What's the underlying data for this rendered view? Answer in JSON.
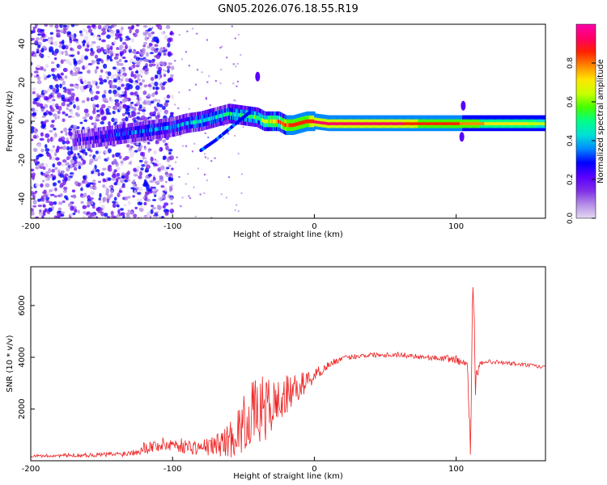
{
  "figure_title": "GN05.2026.076.18.55.R19",
  "colors": {
    "snr_line": "#ee2222",
    "cmap": [
      "#e6d8f2",
      "#b38de6",
      "#7f2ee6",
      "#5a00ff",
      "#0000ff",
      "#0088ff",
      "#00e0d8",
      "#00ff88",
      "#44ff00",
      "#c8ff00",
      "#ffe600",
      "#ff8800",
      "#ff2200",
      "#ff0066",
      "#ff00aa"
    ]
  },
  "chart_data": [
    {
      "type": "heatmap",
      "title": "",
      "xlabel": "Height of straight line (km)",
      "ylabel": "Frequency (Hz)",
      "xlim": [
        -200,
        163
      ],
      "ylim": [
        -50,
        50
      ],
      "xticks": [
        -200,
        -100,
        0,
        100
      ],
      "xtick_labels": [
        "-200",
        "-100",
        "0",
        "100"
      ],
      "yticks": [
        -40,
        -20,
        0,
        20,
        40
      ],
      "ytick_labels": [
        "-40",
        "-20",
        "0",
        "20",
        "40"
      ],
      "ridge": {
        "x": [
          -170,
          -160,
          -150,
          -140,
          -130,
          -120,
          -110,
          -100,
          -90,
          -80,
          -70,
          -60,
          -50,
          -40,
          -35,
          -30,
          -25,
          -20,
          -15,
          -10,
          -5,
          0,
          10,
          20,
          40,
          60,
          80,
          90,
          100,
          105,
          110,
          120,
          140,
          163
        ],
        "freq": [
          -10,
          -9,
          -8,
          -7,
          -6,
          -5,
          -4,
          -3,
          -1,
          0,
          2,
          4,
          3,
          2,
          0,
          0,
          0,
          -2,
          -2,
          -1,
          0,
          0,
          -1,
          -1,
          -1,
          -1,
          -1,
          -1,
          -1,
          -1,
          -1,
          -1,
          -1,
          -1
        ],
        "amplitude": [
          0.15,
          0.2,
          0.25,
          0.3,
          0.3,
          0.35,
          0.35,
          0.35,
          0.4,
          0.4,
          0.45,
          0.45,
          0.5,
          0.55,
          0.6,
          0.7,
          0.75,
          0.8,
          0.85,
          0.85,
          0.85,
          0.9,
          0.9,
          0.9,
          0.9,
          0.9,
          0.85,
          0.85,
          0.85,
          0.8,
          0.8,
          0.75,
          0.7,
          0.65
        ]
      },
      "branch": {
        "x": [
          -80,
          -70,
          -60,
          -50,
          -45
        ],
        "freq": [
          -15,
          -10,
          -4,
          2,
          5
        ]
      },
      "spikes": [
        {
          "x": -40,
          "freq": 23
        },
        {
          "x": 105,
          "freq": 8
        },
        {
          "x": 104,
          "freq": -8
        }
      ],
      "colorbar": {
        "label": "Normalized spectral amplitude",
        "range": [
          0,
          1
        ],
        "ticks": [
          0.0,
          0.2,
          0.4,
          0.6,
          0.8
        ],
        "tick_labels": [
          "0.0",
          "0.2",
          "0.4",
          "0.6",
          "0.8"
        ]
      }
    },
    {
      "type": "line",
      "title": "",
      "xlabel": "Height of straight line (km)",
      "ylabel": "SNR (10 * v/v)",
      "xlim": [
        -200,
        163
      ],
      "ylim": [
        0,
        7500
      ],
      "xticks": [
        -200,
        -100,
        0,
        100
      ],
      "xtick_labels": [
        "-200",
        "-100",
        "0",
        "100"
      ],
      "yticks": [
        2000,
        4000,
        6000
      ],
      "ytick_labels": [
        "2000",
        "4000",
        "6000"
      ],
      "series": [
        {
          "name": "SNR",
          "x": [
            -200,
            -180,
            -160,
            -140,
            -130,
            -120,
            -110,
            -100,
            -90,
            -80,
            -70,
            -60,
            -55,
            -50,
            -45,
            -40,
            -35,
            -30,
            -25,
            -20,
            -15,
            -10,
            -5,
            0,
            5,
            10,
            15,
            20,
            25,
            30,
            40,
            50,
            60,
            70,
            80,
            90,
            95,
            100,
            105,
            108,
            110,
            112,
            114,
            116,
            120,
            130,
            140,
            150,
            163
          ],
          "y": [
            180,
            200,
            220,
            250,
            300,
            500,
            600,
            650,
            550,
            500,
            600,
            800,
            1100,
            1400,
            1800,
            1900,
            2000,
            2100,
            2300,
            2500,
            2700,
            2900,
            3100,
            3300,
            3500,
            3700,
            3850,
            3950,
            4000,
            4050,
            4100,
            4100,
            4100,
            4050,
            4000,
            3950,
            3950,
            3900,
            3800,
            3700,
            1500,
            6500,
            2500,
            3700,
            3850,
            3800,
            3750,
            3700,
            3600
          ],
          "noise": [
            60,
            70,
            80,
            100,
            120,
            250,
            280,
            300,
            280,
            300,
            400,
            700,
            900,
            1100,
            1200,
            1300,
            1300,
            1100,
            900,
            800,
            600,
            500,
            400,
            300,
            200,
            150,
            120,
            100,
            100,
            100,
            100,
            100,
            100,
            100,
            100,
            100,
            150,
            200,
            100,
            200,
            1500,
            900,
            900,
            100,
            80,
            80,
            80,
            80,
            80
          ]
        }
      ]
    }
  ]
}
